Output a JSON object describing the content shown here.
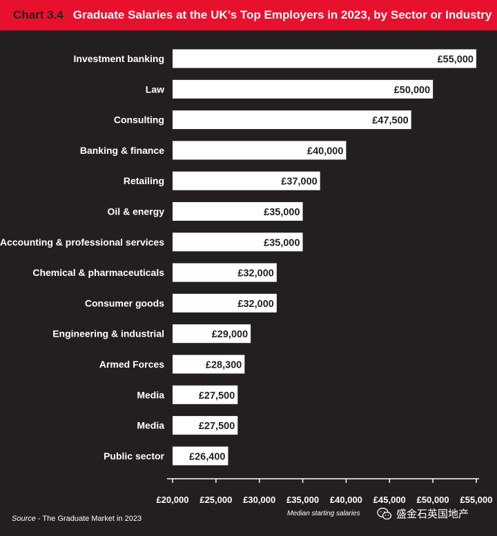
{
  "header": {
    "chart_number": "Chart 3.4",
    "title": "Graduate Salaries at the UK’s Top Employers in 2023, by Sector or Industry"
  },
  "source": {
    "prefix": "Source",
    "text": " - The Graduate Market in 2023"
  },
  "watermark": {
    "icon": "wechat-icon",
    "text": "盛金石英国地产"
  },
  "colors": {
    "header_bg": "#e8112d",
    "background": "#231f20",
    "bar": "#ffffff"
  },
  "chart_data": {
    "type": "bar",
    "orientation": "horizontal",
    "title": "Graduate Salaries at the UK’s Top Employers in 2023, by Sector or Industry",
    "xlabel": "Median starting salaries",
    "ylabel": "",
    "xlim": [
      20000,
      55000
    ],
    "xticks": [
      20000,
      25000,
      30000,
      35000,
      40000,
      45000,
      50000,
      55000
    ],
    "xtick_labels": [
      "£20,000",
      "£25,000",
      "£30,000",
      "£35,000",
      "£40,000",
      "£45,000",
      "£50,000",
      "£55,000"
    ],
    "grid": false,
    "categories": [
      "Investment banking",
      "Law",
      "Consulting",
      "Banking & finance",
      "Retailing",
      "Oil & energy",
      "Accounting & professional services",
      "Chemical & pharmaceuticals",
      "Consumer goods",
      "Engineering & industrial",
      "Armed Forces",
      "Media",
      "Media",
      "Public sector"
    ],
    "values": [
      55000,
      50000,
      47500,
      40000,
      37000,
      35000,
      35000,
      32000,
      32000,
      29000,
      28300,
      27500,
      27500,
      26400
    ],
    "value_labels": [
      "£55,000",
      "£50,000",
      "£47,500",
      "£40,000",
      "£37,000",
      "£35,000",
      "£35,000",
      "£32,000",
      "£32,000",
      "£29,000",
      "£28,300",
      "£27,500",
      "£27,500",
      "£26,400"
    ]
  }
}
